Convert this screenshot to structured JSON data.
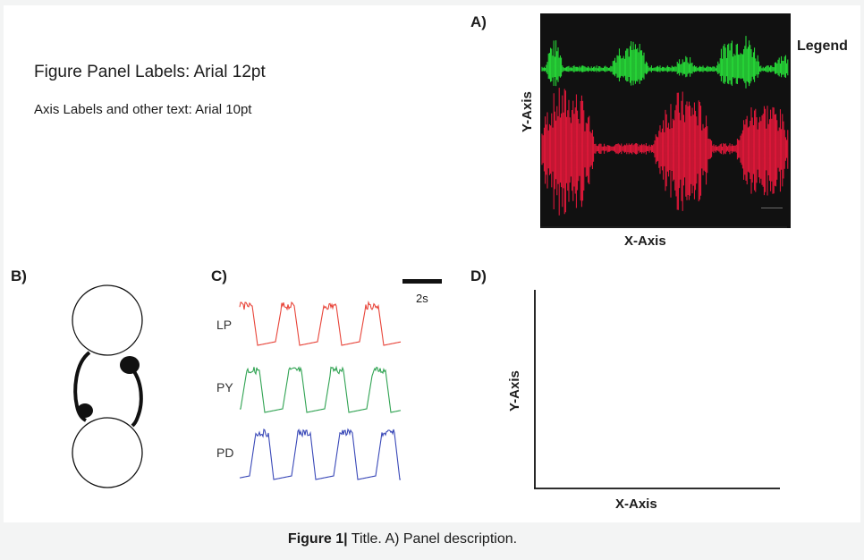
{
  "text": {
    "font_note_panel": "Figure Panel Labels: Arial 12pt",
    "font_note_axis": "Axis Labels and other text: Arial 10pt"
  },
  "panel_a": {
    "label": "A)",
    "legend": "Legend",
    "y_axis": "Y-Axis",
    "x_axis": "X-Axis",
    "colors": {
      "background": "#111111",
      "trace_top": "#28e83a",
      "trace_bottom": "#f0183c"
    }
  },
  "panel_b": {
    "label": "B)"
  },
  "panel_c": {
    "label": "C)",
    "scale_bar": "2s",
    "traces": [
      {
        "label": "LP",
        "color": "#e8453a"
      },
      {
        "label": "PY",
        "color": "#31a353"
      },
      {
        "label": "PD",
        "color": "#3a49b8"
      }
    ]
  },
  "panel_d": {
    "label": "D)",
    "y_axis": "Y-Axis",
    "x_axis": "X-Axis"
  },
  "caption": {
    "bold": "Figure 1|",
    "rest": " Title. A) Panel description."
  }
}
